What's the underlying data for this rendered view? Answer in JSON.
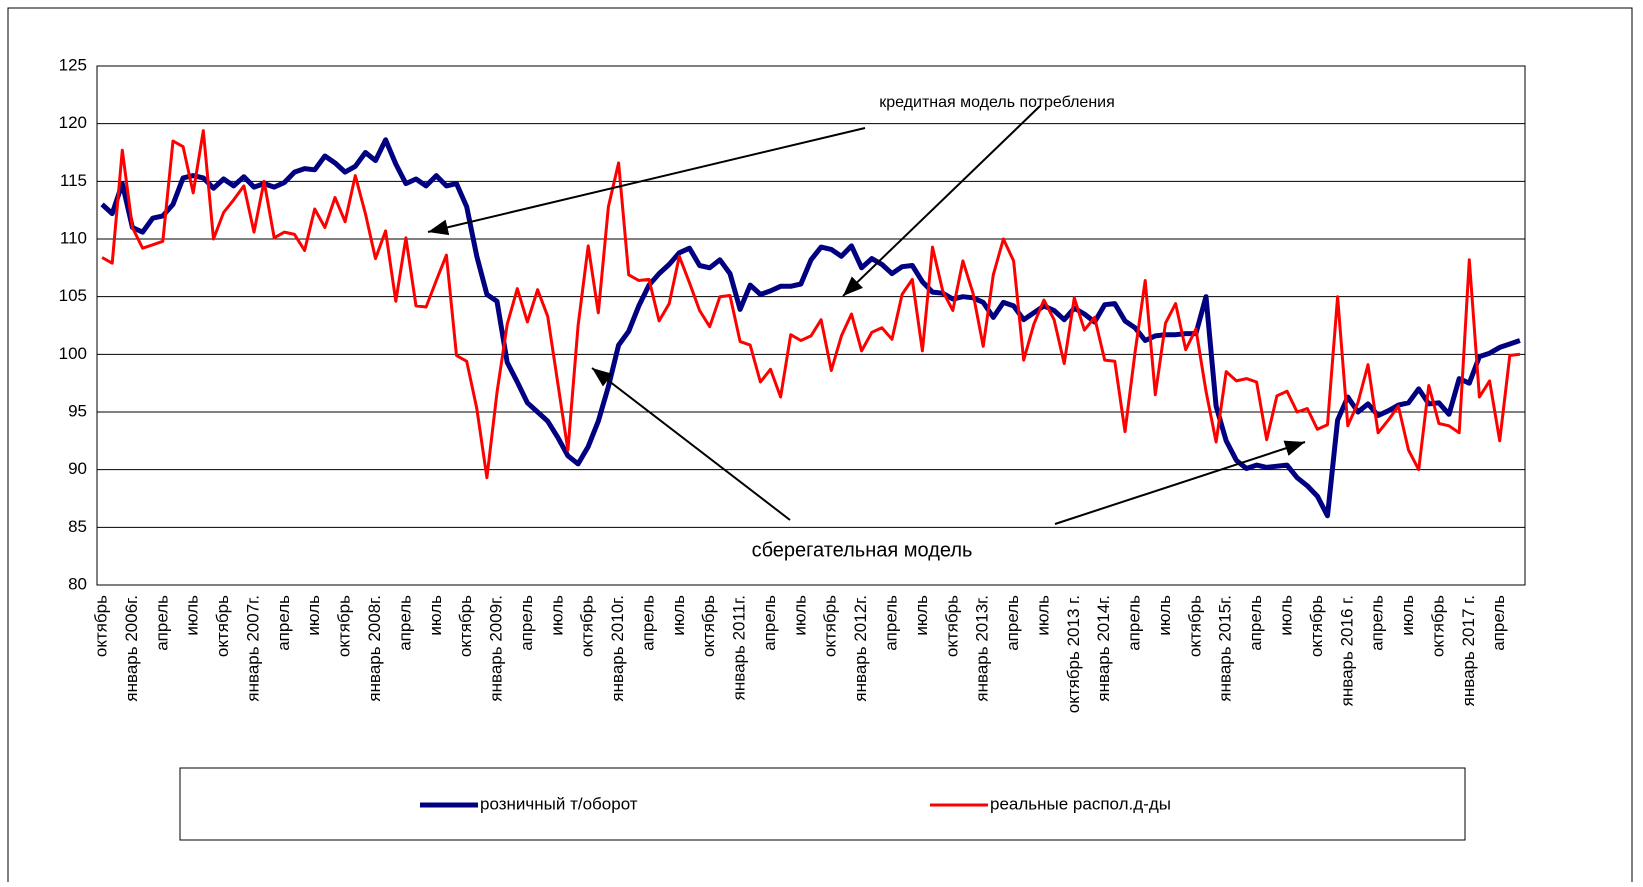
{
  "chart_data": {
    "type": "line",
    "annotations": [
      "кредитная модель потребления",
      "сберегательная модель"
    ],
    "categories": [
      "октябрь",
      null,
      null,
      "январь 2006г.",
      null,
      null,
      "апрель",
      null,
      null,
      "июль",
      null,
      null,
      "октябрь",
      null,
      null,
      "январь 2007г.",
      null,
      null,
      "апрель",
      null,
      null,
      "июль",
      null,
      null,
      "октябрь",
      null,
      null,
      "январь 2008г.",
      null,
      null,
      "апрель",
      null,
      null,
      "июль",
      null,
      null,
      "октябрь",
      null,
      null,
      "январь 2009г.",
      null,
      null,
      "апрель",
      null,
      null,
      "июль",
      null,
      null,
      "октябрь",
      null,
      null,
      "январь 2010г.",
      null,
      null,
      "апрель",
      null,
      null,
      "июль",
      null,
      null,
      "октябрь",
      null,
      null,
      "январь 2011г.",
      null,
      null,
      "апрель",
      null,
      null,
      "июль",
      null,
      null,
      "октябрь",
      null,
      null,
      "январь 2012г.",
      null,
      null,
      "апрель",
      null,
      null,
      "июль",
      null,
      null,
      "октябрь",
      null,
      null,
      "январь 2013г.",
      null,
      null,
      "апрель",
      null,
      null,
      "июль",
      null,
      null,
      "октябрь 2013 г.",
      null,
      null,
      "январь 2014г.",
      null,
      null,
      "апрель",
      null,
      null,
      "июль",
      null,
      null,
      "октябрь",
      null,
      null,
      "январь 2015г.",
      null,
      null,
      "апрель",
      null,
      null,
      "июль",
      null,
      null,
      "октябрь",
      null,
      null,
      "январь 2016 г.",
      null,
      null,
      "апрель",
      null,
      null,
      "июль",
      null,
      null,
      "октябрь",
      null,
      null,
      "январь 2017 г.",
      null,
      null,
      "апрель",
      null,
      null
    ],
    "series": [
      {
        "name": "розничный т/оборот",
        "color": "#000080",
        "values": [
          113,
          112.2,
          114.8,
          111,
          110.6,
          111.8,
          112,
          113,
          115.3,
          115.5,
          115.3,
          114.4,
          115.2,
          114.6,
          115.4,
          114.5,
          114.8,
          114.5,
          114.9,
          115.8,
          116.1,
          116,
          117.2,
          116.6,
          115.8,
          116.3,
          117.5,
          116.8,
          118.6,
          116.5,
          114.8,
          115.2,
          114.6,
          115.5,
          114.6,
          114.8,
          112.8,
          108.5,
          105.2,
          104.6,
          99.3,
          97.6,
          95.8,
          95,
          94.2,
          92.8,
          91.2,
          90.5,
          92,
          94.2,
          97.2,
          100.8,
          102,
          104.2,
          106,
          107,
          107.8,
          108.8,
          109.2,
          107.7,
          107.5,
          108.2,
          107,
          103.9,
          106,
          105.2,
          105.5,
          105.9,
          105.9,
          106.1,
          108.2,
          109.3,
          109.1,
          108.5,
          109.4,
          107.5,
          108.3,
          107.8,
          107,
          107.6,
          107.7,
          106.3,
          105.4,
          105.3,
          104.8,
          105,
          104.9,
          104.5,
          103.2,
          104.5,
          104.2,
          103,
          103.6,
          104.2,
          103.8,
          103,
          104,
          103.5,
          102.8,
          104.3,
          104.4,
          102.9,
          102.3,
          101.2,
          101.6,
          101.7,
          101.7,
          101.8,
          101.8,
          105,
          95.5,
          92.5,
          90.8,
          90.1,
          90.4,
          90.2,
          90.3,
          90.4,
          89.3,
          88.6,
          87.7,
          86,
          94.3,
          96.3,
          95,
          95.7,
          94.7,
          95.1,
          95.6,
          95.8,
          97,
          95.7,
          95.8,
          94.8,
          97.9,
          97.5,
          99.8,
          100.1,
          100.6,
          100.9,
          101.2
        ]
      },
      {
        "name": "реальные распол.д-ды",
        "color": "#ff0000",
        "values": [
          108.4,
          107.9,
          117.7,
          111,
          109.2,
          109.5,
          109.8,
          118.5,
          118,
          114,
          119.4,
          110,
          112.3,
          113.4,
          114.6,
          110.6,
          115,
          110.1,
          110.6,
          110.4,
          109,
          112.6,
          111,
          113.6,
          111.5,
          115.5,
          112.2,
          108.3,
          110.7,
          104.6,
          110.1,
          104.2,
          104.1,
          106.4,
          108.6,
          99.9,
          99.4,
          95.3,
          89.3,
          96.7,
          102.6,
          105.7,
          102.8,
          105.6,
          103.3,
          97.5,
          91.7,
          102.5,
          109.4,
          103.6,
          112.8,
          116.6,
          106.9,
          106.4,
          106.5,
          102.9,
          104.4,
          108.5,
          106.2,
          103.8,
          102.4,
          105,
          105.1,
          101.1,
          100.8,
          97.6,
          98.7,
          96.3,
          101.7,
          101.2,
          101.6,
          103,
          98.6,
          101.6,
          103.5,
          100.3,
          101.9,
          102.3,
          101.3,
          105.2,
          106.5,
          100.3,
          109.3,
          105.5,
          103.8,
          108.1,
          105.3,
          100.7,
          106.9,
          110,
          108.1,
          99.5,
          102.6,
          104.7,
          103,
          99.2,
          104.9,
          102.1,
          103.2,
          99.5,
          99.4,
          93.3,
          100.2,
          106.4,
          96.5,
          102.7,
          104.4,
          100.4,
          102.2,
          96.8,
          92.4,
          98.5,
          97.7,
          97.9,
          97.6,
          92.6,
          96.4,
          96.8,
          95,
          95.3,
          93.5,
          93.9,
          105,
          93.8,
          95.8,
          99.1,
          93.2,
          94.3,
          95.5,
          91.7,
          90,
          97.3,
          94,
          93.8,
          93.2,
          108.2,
          96.3,
          97.7,
          92.5,
          99.9,
          100
        ]
      }
    ],
    "ylim": [
      80,
      125
    ],
    "yticks": [
      80,
      85,
      90,
      95,
      100,
      105,
      110,
      115,
      120,
      125
    ],
    "grid": true
  }
}
